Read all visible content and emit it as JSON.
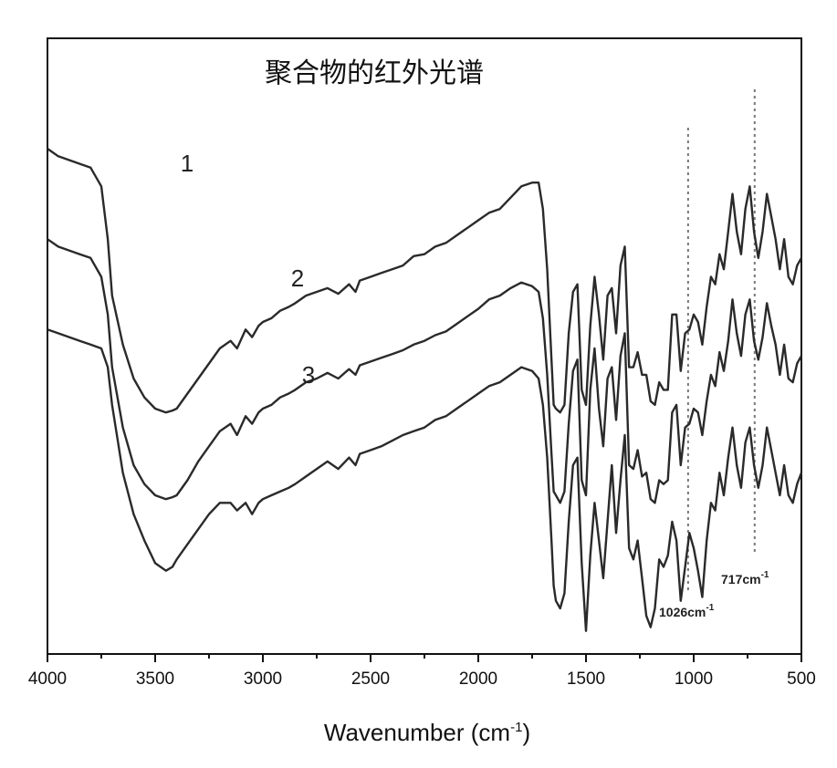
{
  "chart_data": {
    "type": "line",
    "title": "聚合物的红外光谱",
    "xlabel": "Wavenumber (cm",
    "xlabel_sup": "-1",
    "xlabel_close": ")",
    "xlim": [
      4000,
      500
    ],
    "xticks": [
      4000,
      3500,
      3000,
      2500,
      2000,
      1500,
      1000,
      500
    ],
    "grid": false,
    "series": [
      {
        "name": "1",
        "x": [
          4000,
          3950,
          3850,
          3800,
          3750,
          3720,
          3700,
          3650,
          3600,
          3550,
          3500,
          3450,
          3420,
          3400,
          3350,
          3300,
          3250,
          3200,
          3150,
          3120,
          3080,
          3050,
          3020,
          3000,
          2960,
          2920,
          2880,
          2850,
          2800,
          2750,
          2700,
          2650,
          2600,
          2570,
          2550,
          2500,
          2450,
          2400,
          2350,
          2300,
          2250,
          2200,
          2150,
          2100,
          2050,
          2000,
          1950,
          1900,
          1850,
          1800,
          1750,
          1720,
          1700,
          1680,
          1660,
          1650,
          1640,
          1620,
          1600,
          1580,
          1560,
          1540,
          1520,
          1500,
          1480,
          1460,
          1440,
          1420,
          1400,
          1380,
          1360,
          1340,
          1320,
          1300,
          1280,
          1260,
          1240,
          1220,
          1200,
          1180,
          1160,
          1140,
          1120,
          1100,
          1080,
          1060,
          1040,
          1020,
          1000,
          980,
          960,
          940,
          920,
          900,
          880,
          860,
          840,
          820,
          800,
          780,
          760,
          740,
          720,
          700,
          680,
          660,
          640,
          620,
          600,
          580,
          560,
          540,
          520,
          500
        ],
        "y": [
          0.94,
          0.92,
          0.9,
          0.89,
          0.84,
          0.7,
          0.55,
          0.42,
          0.33,
          0.28,
          0.25,
          0.24,
          0.245,
          0.25,
          0.29,
          0.33,
          0.37,
          0.41,
          0.43,
          0.41,
          0.46,
          0.44,
          0.47,
          0.48,
          0.49,
          0.51,
          0.52,
          0.53,
          0.55,
          0.56,
          0.57,
          0.555,
          0.58,
          0.56,
          0.59,
          0.6,
          0.61,
          0.62,
          0.63,
          0.655,
          0.66,
          0.68,
          0.69,
          0.71,
          0.73,
          0.75,
          0.77,
          0.78,
          0.81,
          0.84,
          0.85,
          0.85,
          0.78,
          0.62,
          0.38,
          0.26,
          0.25,
          0.24,
          0.26,
          0.45,
          0.56,
          0.58,
          0.3,
          0.26,
          0.47,
          0.6,
          0.5,
          0.38,
          0.55,
          0.57,
          0.45,
          0.63,
          0.68,
          0.36,
          0.36,
          0.4,
          0.34,
          0.34,
          0.27,
          0.26,
          0.32,
          0.3,
          0.3,
          0.5,
          0.5,
          0.35,
          0.45,
          0.46,
          0.5,
          0.48,
          0.42,
          0.52,
          0.6,
          0.58,
          0.66,
          0.62,
          0.72,
          0.82,
          0.72,
          0.66,
          0.78,
          0.84,
          0.72,
          0.65,
          0.72,
          0.82,
          0.76,
          0.7,
          0.62,
          0.7,
          0.6,
          0.58,
          0.63,
          0.65
        ]
      },
      {
        "name": "2",
        "x": [
          4000,
          3950,
          3850,
          3800,
          3750,
          3720,
          3700,
          3650,
          3600,
          3550,
          3500,
          3450,
          3420,
          3400,
          3350,
          3300,
          3250,
          3200,
          3150,
          3120,
          3080,
          3050,
          3020,
          3000,
          2960,
          2920,
          2880,
          2850,
          2800,
          2750,
          2700,
          2650,
          2600,
          2570,
          2550,
          2500,
          2450,
          2400,
          2350,
          2300,
          2250,
          2200,
          2150,
          2100,
          2050,
          2000,
          1950,
          1900,
          1850,
          1800,
          1750,
          1720,
          1700,
          1680,
          1660,
          1650,
          1640,
          1620,
          1600,
          1580,
          1560,
          1540,
          1520,
          1500,
          1480,
          1460,
          1440,
          1420,
          1400,
          1380,
          1360,
          1340,
          1320,
          1300,
          1280,
          1260,
          1240,
          1220,
          1200,
          1180,
          1160,
          1140,
          1120,
          1100,
          1080,
          1060,
          1040,
          1020,
          1000,
          980,
          960,
          940,
          920,
          900,
          880,
          860,
          840,
          820,
          800,
          780,
          760,
          740,
          720,
          700,
          680,
          660,
          640,
          620,
          600,
          580,
          560,
          540,
          520,
          500
        ],
        "y": [
          0.7,
          0.68,
          0.66,
          0.65,
          0.6,
          0.5,
          0.36,
          0.2,
          0.1,
          0.05,
          0.02,
          0.01,
          0.015,
          0.02,
          0.06,
          0.11,
          0.15,
          0.19,
          0.21,
          0.18,
          0.23,
          0.21,
          0.24,
          0.25,
          0.26,
          0.28,
          0.29,
          0.3,
          0.32,
          0.33,
          0.345,
          0.33,
          0.355,
          0.34,
          0.365,
          0.375,
          0.385,
          0.395,
          0.405,
          0.42,
          0.43,
          0.445,
          0.455,
          0.475,
          0.495,
          0.515,
          0.54,
          0.55,
          0.57,
          0.585,
          0.575,
          0.56,
          0.49,
          0.34,
          0.13,
          0.03,
          0.02,
          0.0,
          0.03,
          0.21,
          0.35,
          0.38,
          0.06,
          0.02,
          0.3,
          0.41,
          0.25,
          0.15,
          0.33,
          0.36,
          0.22,
          0.39,
          0.45,
          0.1,
          0.09,
          0.14,
          0.07,
          0.08,
          0.01,
          0.0,
          0.06,
          0.05,
          0.06,
          0.24,
          0.26,
          0.1,
          0.2,
          0.21,
          0.25,
          0.24,
          0.18,
          0.27,
          0.34,
          0.31,
          0.4,
          0.35,
          0.43,
          0.54,
          0.45,
          0.39,
          0.5,
          0.54,
          0.43,
          0.38,
          0.44,
          0.53,
          0.47,
          0.42,
          0.34,
          0.42,
          0.33,
          0.32,
          0.37,
          0.39
        ]
      },
      {
        "name": "3",
        "x": [
          4000,
          3950,
          3850,
          3800,
          3750,
          3720,
          3700,
          3650,
          3600,
          3550,
          3500,
          3450,
          3420,
          3400,
          3350,
          3300,
          3250,
          3200,
          3150,
          3120,
          3080,
          3050,
          3020,
          3000,
          2960,
          2920,
          2880,
          2850,
          2800,
          2750,
          2700,
          2650,
          2600,
          2570,
          2550,
          2500,
          2450,
          2400,
          2350,
          2300,
          2250,
          2200,
          2150,
          2100,
          2050,
          2000,
          1950,
          1900,
          1850,
          1800,
          1750,
          1720,
          1700,
          1680,
          1660,
          1650,
          1640,
          1620,
          1600,
          1580,
          1560,
          1540,
          1520,
          1500,
          1480,
          1460,
          1440,
          1420,
          1400,
          1380,
          1360,
          1340,
          1320,
          1300,
          1280,
          1260,
          1240,
          1220,
          1200,
          1180,
          1160,
          1140,
          1120,
          1100,
          1080,
          1060,
          1040,
          1020,
          1000,
          980,
          960,
          940,
          920,
          900,
          880,
          860,
          840,
          820,
          800,
          780,
          760,
          740,
          720,
          700,
          680,
          660,
          640,
          620,
          600,
          580,
          560,
          540,
          520,
          500
        ],
        "y": [
          0.46,
          0.45,
          0.43,
          0.42,
          0.41,
          0.36,
          0.26,
          0.08,
          -0.03,
          -0.1,
          -0.16,
          -0.18,
          -0.17,
          -0.15,
          -0.11,
          -0.07,
          -0.03,
          0.0,
          0.0,
          -0.02,
          0.0,
          -0.03,
          0.0,
          0.01,
          0.02,
          0.03,
          0.04,
          0.05,
          0.07,
          0.09,
          0.11,
          0.09,
          0.12,
          0.1,
          0.13,
          0.14,
          0.15,
          0.165,
          0.18,
          0.19,
          0.2,
          0.22,
          0.23,
          0.25,
          0.27,
          0.29,
          0.31,
          0.32,
          0.34,
          0.36,
          0.35,
          0.33,
          0.26,
          0.12,
          -0.1,
          -0.22,
          -0.26,
          -0.28,
          -0.24,
          -0.05,
          0.1,
          0.12,
          -0.16,
          -0.34,
          -0.14,
          0.0,
          -0.1,
          -0.2,
          -0.05,
          0.1,
          -0.08,
          0.06,
          0.18,
          -0.12,
          -0.15,
          -0.1,
          -0.2,
          -0.3,
          -0.33,
          -0.28,
          -0.15,
          -0.17,
          -0.14,
          -0.05,
          -0.1,
          -0.26,
          -0.17,
          -0.08,
          -0.12,
          -0.18,
          -0.25,
          -0.1,
          0.0,
          -0.02,
          0.08,
          0.02,
          0.12,
          0.2,
          0.1,
          0.04,
          0.16,
          0.2,
          0.1,
          0.04,
          0.1,
          0.2,
          0.14,
          0.08,
          0.02,
          0.1,
          0.02,
          0.0,
          0.05,
          0.08
        ]
      }
    ],
    "series_labels": [
      "1",
      "2",
      "3"
    ],
    "annotations": [
      {
        "text": "717cm",
        "sup": "-1",
        "x": 717
      },
      {
        "text": "1026cm",
        "sup": "-1",
        "x": 1026
      }
    ],
    "colors": {
      "line": "#2a2a2a",
      "axis": "#111111",
      "reference_line": "#777777"
    }
  }
}
